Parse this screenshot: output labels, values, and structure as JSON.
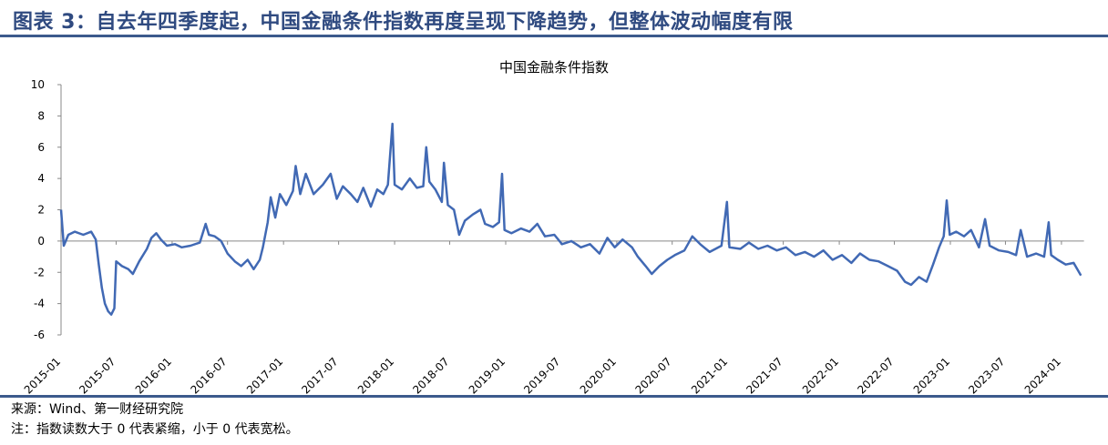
{
  "header": {
    "title": "图表 3：自去年四季度起，中国金融条件指数再度呈现下降趋势，但整体波动幅度有限"
  },
  "footer": {
    "source": "来源：Wind、第一财经研究院",
    "note": "注：指数读数大于 0 代表紧缩，小于 0 代表宽松。"
  },
  "chart_data": {
    "type": "line",
    "title": "中国金融条件指数",
    "xlabel": "",
    "ylabel": "",
    "ylim": [
      -6,
      10
    ],
    "yticks": [
      -6,
      -4,
      -2,
      0,
      2,
      4,
      6,
      8,
      10
    ],
    "xticks": [
      "2015-01",
      "2015-07",
      "2016-01",
      "2016-07",
      "2017-01",
      "2017-07",
      "2018-01",
      "2018-07",
      "2019-01",
      "2019-07",
      "2020-01",
      "2020-07",
      "2021-01",
      "2021-07",
      "2022-01",
      "2022-07",
      "2023-01",
      "2023-07",
      "2024-01"
    ],
    "grid": false,
    "color": "#4169b4",
    "series": [
      {
        "points": [
          [
            "2015-01-01",
            2.0
          ],
          [
            "2015-01-10",
            -0.3
          ],
          [
            "2015-01-25",
            0.4
          ],
          [
            "2015-02-15",
            0.6
          ],
          [
            "2015-03-15",
            0.4
          ],
          [
            "2015-04-10",
            0.6
          ],
          [
            "2015-04-25",
            0.1
          ],
          [
            "2015-05-05",
            -1.5
          ],
          [
            "2015-05-15",
            -3.0
          ],
          [
            "2015-05-25",
            -4.0
          ],
          [
            "2015-06-05",
            -4.5
          ],
          [
            "2015-06-15",
            -4.7
          ],
          [
            "2015-06-25",
            -4.3
          ],
          [
            "2015-07-01",
            -1.3
          ],
          [
            "2015-07-20",
            -1.6
          ],
          [
            "2015-08-10",
            -1.8
          ],
          [
            "2015-08-25",
            -2.1
          ],
          [
            "2015-09-15",
            -1.3
          ],
          [
            "2015-10-10",
            -0.5
          ],
          [
            "2015-10-25",
            0.2
          ],
          [
            "2015-11-10",
            0.5
          ],
          [
            "2015-11-25",
            0.1
          ],
          [
            "2015-12-15",
            -0.3
          ],
          [
            "2016-01-10",
            -0.2
          ],
          [
            "2016-02-01",
            -0.4
          ],
          [
            "2016-03-01",
            -0.3
          ],
          [
            "2016-04-01",
            -0.1
          ],
          [
            "2016-04-20",
            1.1
          ],
          [
            "2016-05-01",
            0.4
          ],
          [
            "2016-05-20",
            0.3
          ],
          [
            "2016-06-10",
            0.0
          ],
          [
            "2016-07-01",
            -0.8
          ],
          [
            "2016-07-25",
            -1.3
          ],
          [
            "2016-08-15",
            -1.6
          ],
          [
            "2016-09-05",
            -1.2
          ],
          [
            "2016-09-25",
            -1.8
          ],
          [
            "2016-10-15",
            -1.2
          ],
          [
            "2016-10-25",
            -0.4
          ],
          [
            "2016-11-10",
            1.2
          ],
          [
            "2016-11-20",
            2.8
          ],
          [
            "2016-12-05",
            1.5
          ],
          [
            "2016-12-20",
            3.0
          ],
          [
            "2017-01-10",
            2.3
          ],
          [
            "2017-02-01",
            3.2
          ],
          [
            "2017-02-10",
            4.8
          ],
          [
            "2017-02-25",
            3.0
          ],
          [
            "2017-03-15",
            4.3
          ],
          [
            "2017-04-10",
            3.0
          ],
          [
            "2017-05-10",
            3.6
          ],
          [
            "2017-06-05",
            4.3
          ],
          [
            "2017-06-25",
            2.7
          ],
          [
            "2017-07-15",
            3.5
          ],
          [
            "2017-08-10",
            3.0
          ],
          [
            "2017-09-01",
            2.5
          ],
          [
            "2017-09-20",
            3.4
          ],
          [
            "2017-10-15",
            2.2
          ],
          [
            "2017-11-05",
            3.3
          ],
          [
            "2017-11-25",
            3.0
          ],
          [
            "2017-12-10",
            3.6
          ],
          [
            "2017-12-25",
            7.5
          ],
          [
            "2018-01-01",
            3.6
          ],
          [
            "2018-01-25",
            3.3
          ],
          [
            "2018-02-20",
            4.0
          ],
          [
            "2018-03-15",
            3.4
          ],
          [
            "2018-04-05",
            3.5
          ],
          [
            "2018-04-15",
            6.0
          ],
          [
            "2018-04-25",
            3.8
          ],
          [
            "2018-05-15",
            3.3
          ],
          [
            "2018-06-05",
            2.5
          ],
          [
            "2018-06-12",
            5.0
          ],
          [
            "2018-06-25",
            2.3
          ],
          [
            "2018-07-15",
            2.0
          ],
          [
            "2018-08-01",
            0.4
          ],
          [
            "2018-08-20",
            1.3
          ],
          [
            "2018-09-15",
            1.7
          ],
          [
            "2018-10-10",
            2.0
          ],
          [
            "2018-10-25",
            1.1
          ],
          [
            "2018-11-20",
            0.9
          ],
          [
            "2018-12-10",
            1.2
          ],
          [
            "2018-12-20",
            4.3
          ],
          [
            "2018-12-28",
            0.7
          ],
          [
            "2019-01-20",
            0.5
          ],
          [
            "2019-02-20",
            0.8
          ],
          [
            "2019-03-20",
            0.6
          ],
          [
            "2019-04-15",
            1.1
          ],
          [
            "2019-05-10",
            0.3
          ],
          [
            "2019-06-10",
            0.4
          ],
          [
            "2019-07-05",
            -0.2
          ],
          [
            "2019-08-05",
            0.0
          ],
          [
            "2019-09-05",
            -0.4
          ],
          [
            "2019-10-05",
            -0.2
          ],
          [
            "2019-11-05",
            -0.8
          ],
          [
            "2019-12-01",
            0.2
          ],
          [
            "2019-12-25",
            -0.4
          ],
          [
            "2020-01-20",
            0.1
          ],
          [
            "2020-02-20",
            -0.4
          ],
          [
            "2020-03-10",
            -1.0
          ],
          [
            "2020-04-05",
            -1.6
          ],
          [
            "2020-04-25",
            -2.1
          ],
          [
            "2020-05-20",
            -1.6
          ],
          [
            "2020-06-15",
            -1.2
          ],
          [
            "2020-07-10",
            -0.9
          ],
          [
            "2020-08-10",
            -0.6
          ],
          [
            "2020-09-05",
            0.3
          ],
          [
            "2020-10-01",
            -0.2
          ],
          [
            "2020-11-01",
            -0.7
          ],
          [
            "2020-12-10",
            -0.3
          ],
          [
            "2020-12-28",
            2.5
          ],
          [
            "2021-01-05",
            -0.4
          ],
          [
            "2021-02-10",
            -0.5
          ],
          [
            "2021-03-10",
            -0.1
          ],
          [
            "2021-04-10",
            -0.5
          ],
          [
            "2021-05-10",
            -0.3
          ],
          [
            "2021-06-10",
            -0.6
          ],
          [
            "2021-07-10",
            -0.4
          ],
          [
            "2021-08-10",
            -0.9
          ],
          [
            "2021-09-10",
            -0.7
          ],
          [
            "2021-10-10",
            -1.0
          ],
          [
            "2021-11-10",
            -0.6
          ],
          [
            "2021-12-10",
            -1.2
          ],
          [
            "2022-01-10",
            -0.9
          ],
          [
            "2022-02-10",
            -1.4
          ],
          [
            "2022-03-10",
            -0.8
          ],
          [
            "2022-04-10",
            -1.2
          ],
          [
            "2022-05-10",
            -1.3
          ],
          [
            "2022-06-10",
            -1.6
          ],
          [
            "2022-07-10",
            -1.9
          ],
          [
            "2022-08-05",
            -2.6
          ],
          [
            "2022-08-25",
            -2.8
          ],
          [
            "2022-09-20",
            -2.3
          ],
          [
            "2022-10-15",
            -2.6
          ],
          [
            "2022-11-05",
            -1.5
          ],
          [
            "2022-11-25",
            -0.4
          ],
          [
            "2022-12-10",
            0.3
          ],
          [
            "2022-12-20",
            2.6
          ],
          [
            "2022-12-30",
            0.4
          ],
          [
            "2023-01-20",
            0.6
          ],
          [
            "2023-02-15",
            0.3
          ],
          [
            "2023-03-10",
            0.7
          ],
          [
            "2023-04-05",
            -0.4
          ],
          [
            "2023-04-25",
            1.4
          ],
          [
            "2023-05-10",
            -0.3
          ],
          [
            "2023-06-10",
            -0.6
          ],
          [
            "2023-07-10",
            -0.7
          ],
          [
            "2023-08-05",
            -0.9
          ],
          [
            "2023-08-20",
            0.7
          ],
          [
            "2023-09-10",
            -1.0
          ],
          [
            "2023-10-10",
            -0.8
          ],
          [
            "2023-11-05",
            -1.0
          ],
          [
            "2023-11-20",
            1.2
          ],
          [
            "2023-11-28",
            -0.9
          ],
          [
            "2023-12-20",
            -1.2
          ],
          [
            "2024-01-15",
            -1.5
          ],
          [
            "2024-02-10",
            -1.4
          ],
          [
            "2024-03-05",
            -2.2
          ]
        ]
      }
    ]
  }
}
